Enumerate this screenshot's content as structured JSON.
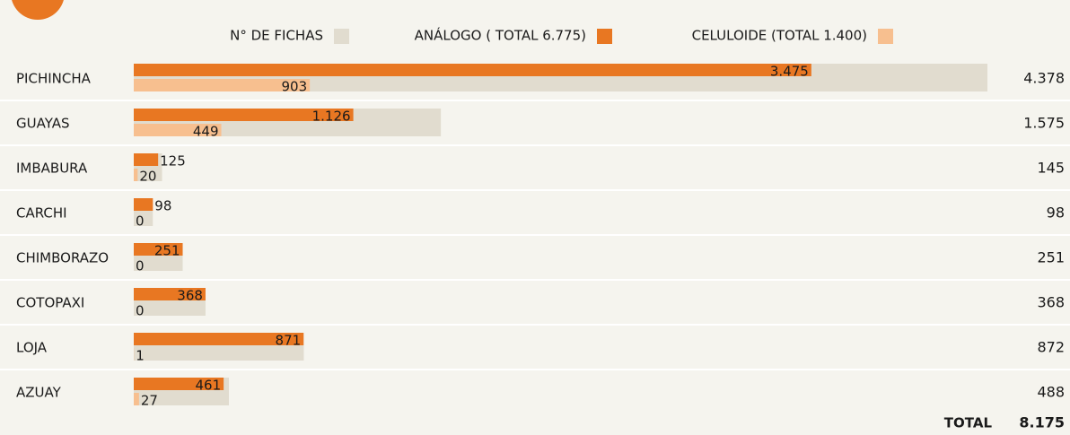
{
  "chart_data": {
    "type": "bar",
    "categories": [
      "PICHINCHA",
      "GUAYAS",
      "IMBABURA",
      "CARCHI",
      "CHIMBORAZO",
      "COTOPAXI",
      "LOJA",
      "AZUAY"
    ],
    "series": [
      {
        "name": "N° DE FICHAS",
        "color": "#e1dccf",
        "values": [
          4378,
          1575,
          145,
          98,
          251,
          368,
          872,
          488
        ],
        "value_labels": [
          "4.378",
          "1.575",
          "145",
          "98",
          "251",
          "368",
          "872",
          "488"
        ]
      },
      {
        "name": "ANÁLOGO ( TOTAL 6.775)",
        "color": "#e87722",
        "values": [
          3475,
          1126,
          125,
          98,
          251,
          368,
          871,
          461
        ],
        "value_labels": [
          "3.475",
          "1.126",
          "125",
          "98",
          "251",
          "368",
          "871",
          "461"
        ]
      },
      {
        "name": "CELULOIDE (TOTAL  1.400)",
        "color": "#f7bf8f",
        "values": [
          903,
          449,
          20,
          0,
          0,
          0,
          1,
          27
        ],
        "value_labels": [
          "903",
          "449",
          "20",
          "0",
          "0",
          "0",
          "1",
          "27"
        ]
      }
    ],
    "grand_total": {
      "label": "TOTAL",
      "value": 8175,
      "value_label": "8.175"
    }
  }
}
